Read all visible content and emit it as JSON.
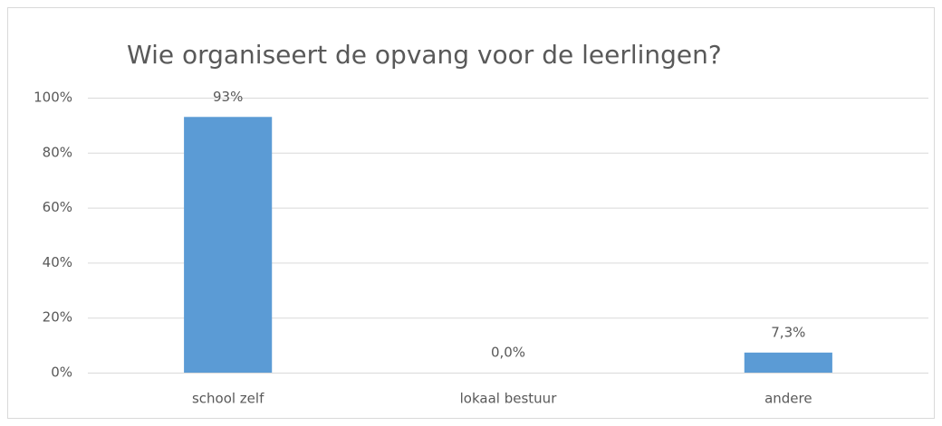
{
  "chart_data": {
    "type": "bar",
    "title": "Wie organiseert de opvang voor de leerlingen?",
    "categories": [
      "school zelf",
      "lokaal bestuur",
      "andere"
    ],
    "values": [
      93,
      0,
      7.3
    ],
    "value_labels": [
      "93%",
      "0,0%",
      "7,3%"
    ],
    "color": "#5b9bd5",
    "ylim": [
      0,
      100
    ],
    "yticks": [
      {
        "value": 0,
        "label": "0%"
      },
      {
        "value": 20,
        "label": "20%"
      },
      {
        "value": 40,
        "label": "40%"
      },
      {
        "value": 60,
        "label": "60%"
      },
      {
        "value": 80,
        "label": "80%"
      },
      {
        "value": 100,
        "label": "100%"
      }
    ],
    "grid": true
  }
}
